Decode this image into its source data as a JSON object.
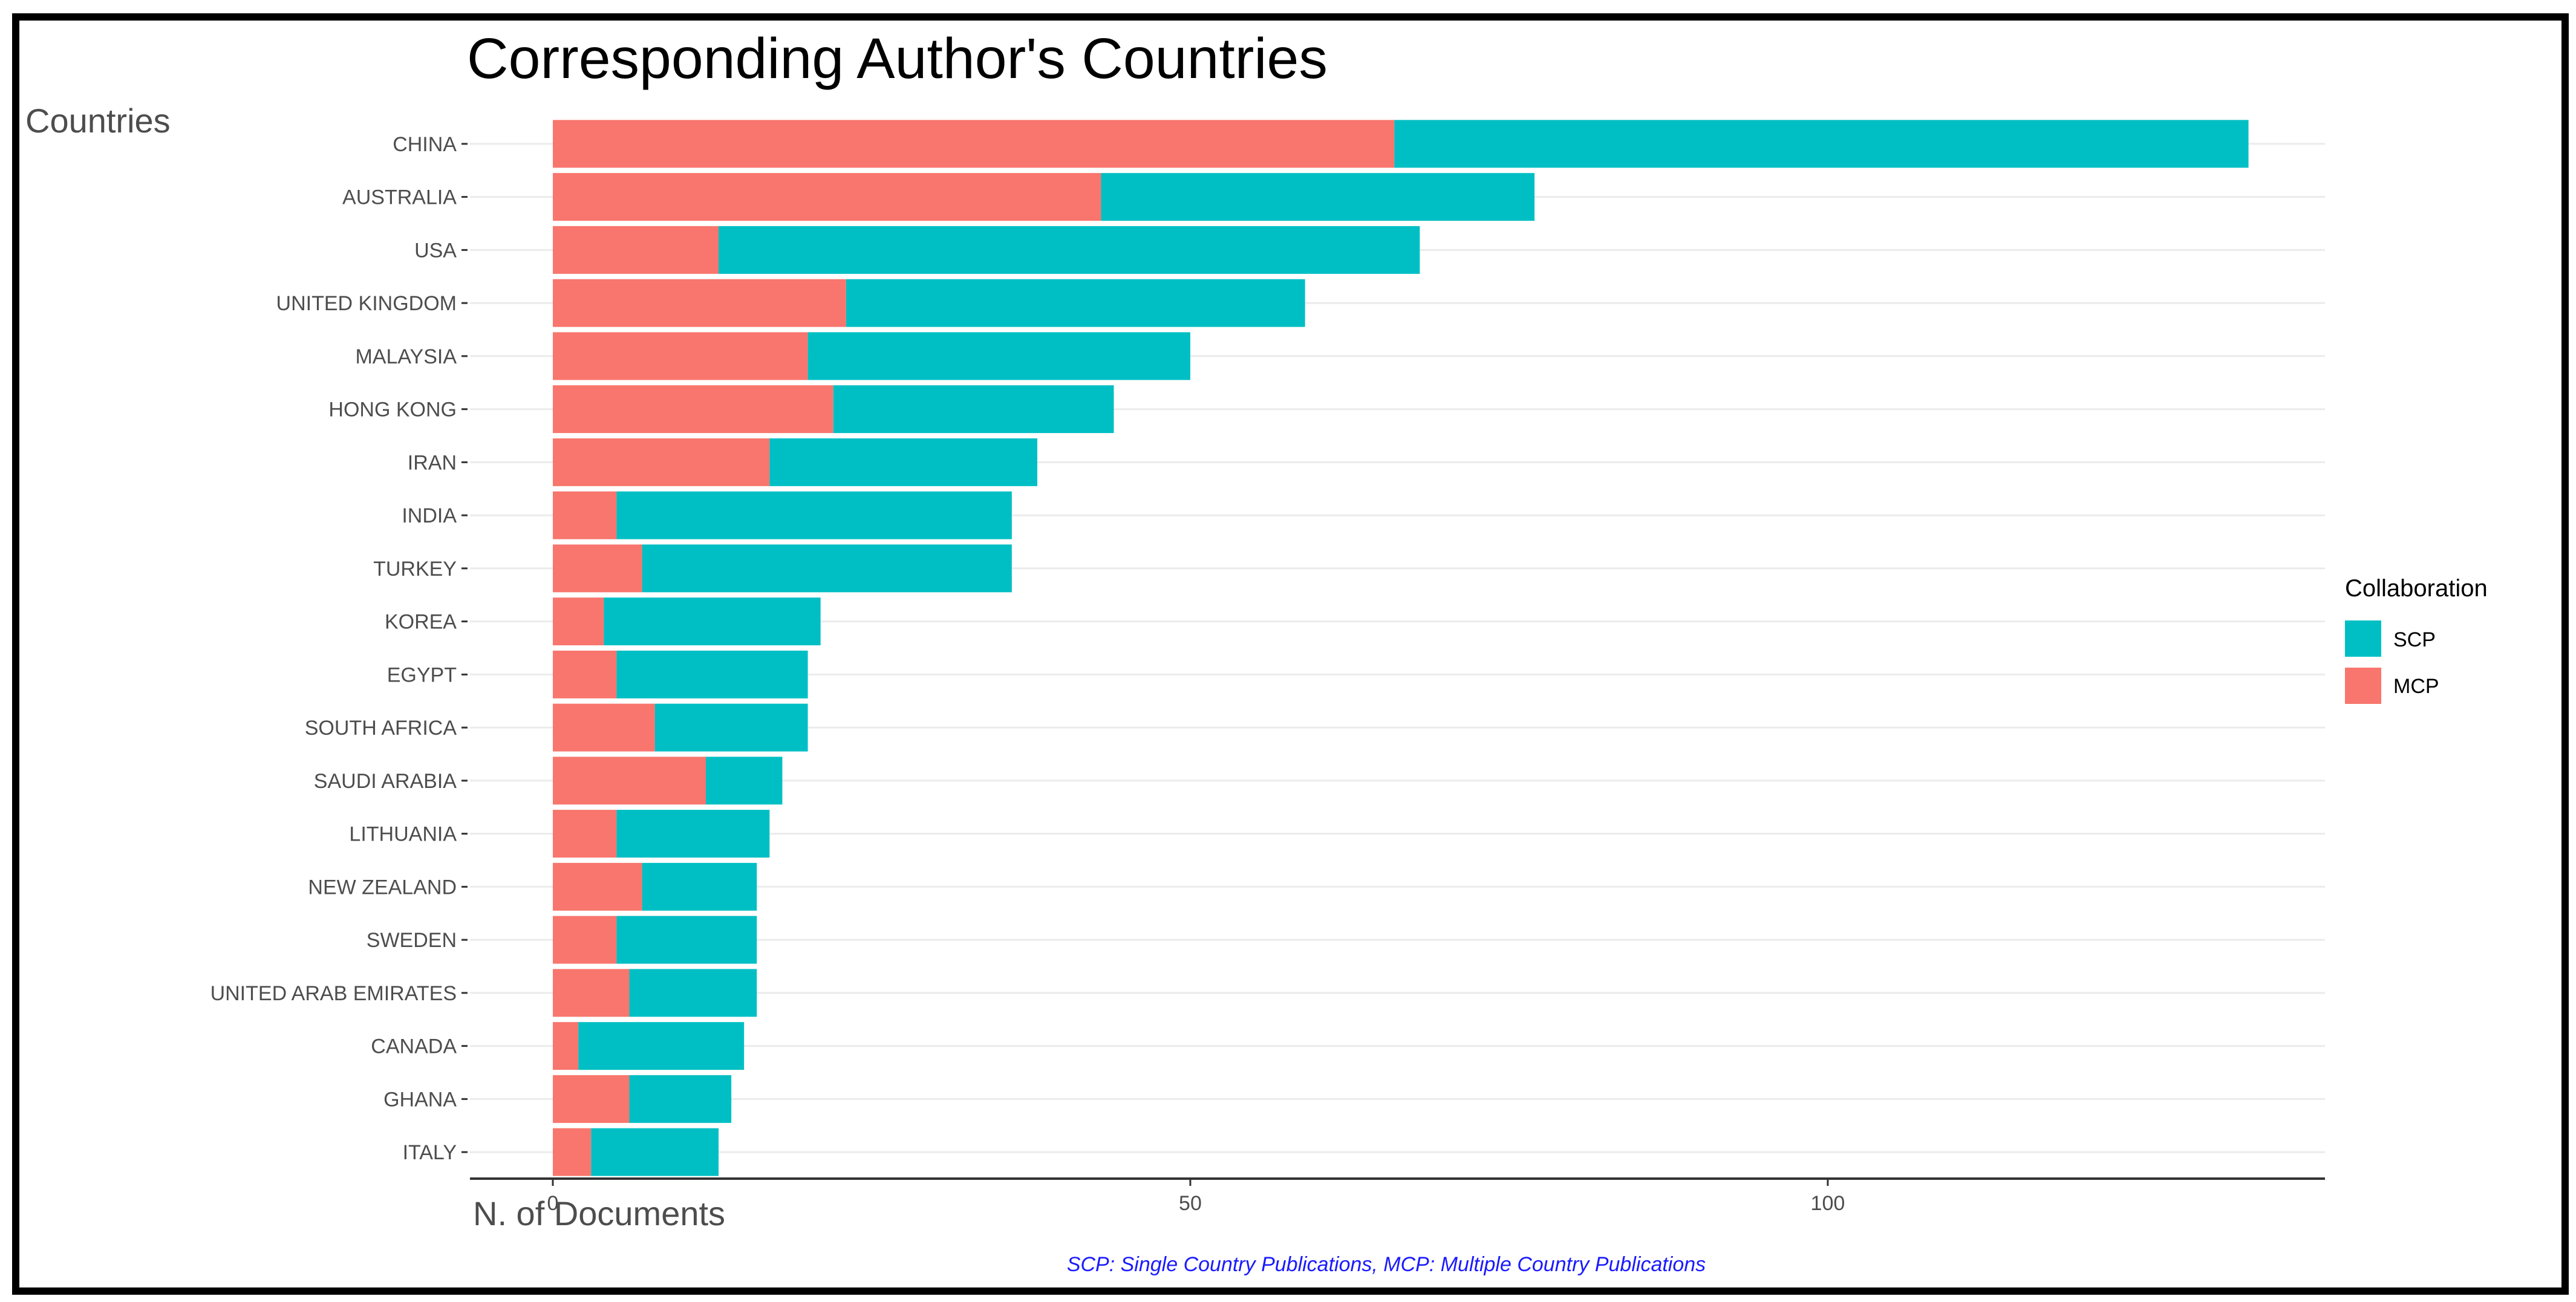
{
  "chart_data": {
    "type": "bar",
    "stacked": true,
    "orientation": "horizontal",
    "title": "Corresponding Author's Countries",
    "ylabel": "Countries",
    "xlabel": "N. of Documents",
    "caption": "SCP: Single Country Publications, MCP: Multiple Country Publications",
    "categories": [
      "CHINA",
      "AUSTRALIA",
      "USA",
      "UNITED KINGDOM",
      "MALAYSIA",
      "HONG KONG",
      "IRAN",
      "INDIA",
      "TURKEY",
      "KOREA",
      "EGYPT",
      "SOUTH AFRICA",
      "SAUDI ARABIA",
      "LITHUANIA",
      "NEW ZEALAND",
      "SWEDEN",
      "UNITED ARAB EMIRATES",
      "CANADA",
      "GHANA",
      "ITALY"
    ],
    "series": [
      {
        "name": "MCP",
        "color": "#f8766d",
        "values": [
          66,
          43,
          13,
          23,
          20,
          22,
          17,
          5,
          7,
          4,
          5,
          8,
          12,
          5,
          7,
          5,
          6,
          2,
          6,
          3
        ]
      },
      {
        "name": "SCP",
        "color": "#00bfc4",
        "values": [
          67,
          34,
          55,
          36,
          30,
          22,
          21,
          31,
          29,
          17,
          15,
          12,
          6,
          12,
          9,
          11,
          10,
          13,
          8,
          10
        ]
      }
    ],
    "xlim": [
      -6.5,
      139
    ],
    "xticks": [
      "0",
      "50",
      "100"
    ],
    "xtick_values": [
      0,
      50,
      100
    ],
    "legend": {
      "title": "Collaboration",
      "position": "right",
      "entries": [
        {
          "label": "SCP",
          "color": "#00bfc4"
        },
        {
          "label": "MCP",
          "color": "#f8766d"
        }
      ]
    },
    "grid": true
  }
}
